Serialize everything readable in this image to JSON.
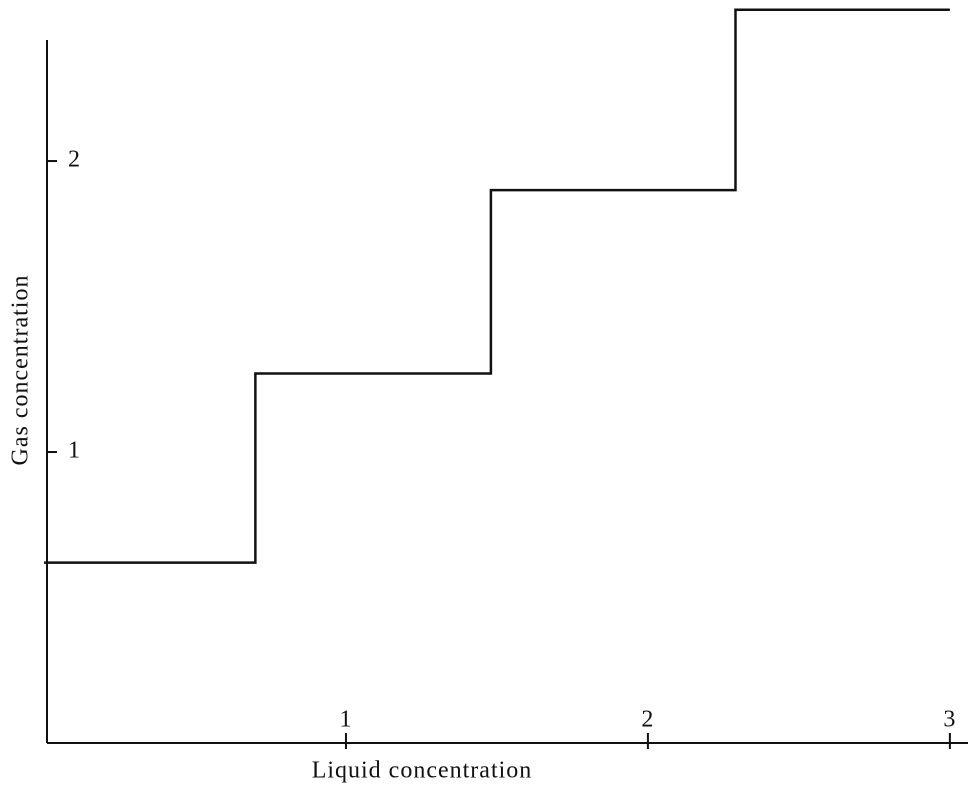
{
  "chart_data": {
    "type": "line",
    "x_label": "Liquid concentration",
    "y_label": "Gas concentration",
    "x": [
      0,
      0.7,
      0.7,
      1.48,
      1.48,
      2.29,
      2.29,
      3.0
    ],
    "series": [
      {
        "color": "#111111",
        "values": [
          0.62,
          0.62,
          1.27,
          1.27,
          1.9,
          1.9,
          2.52,
          2.52
        ]
      }
    ],
    "xlim": [
      0,
      3.06
    ],
    "ylim": [
      0,
      2.55
    ],
    "xticks": [
      1,
      2,
      3
    ],
    "yticks": [
      1,
      2
    ]
  }
}
